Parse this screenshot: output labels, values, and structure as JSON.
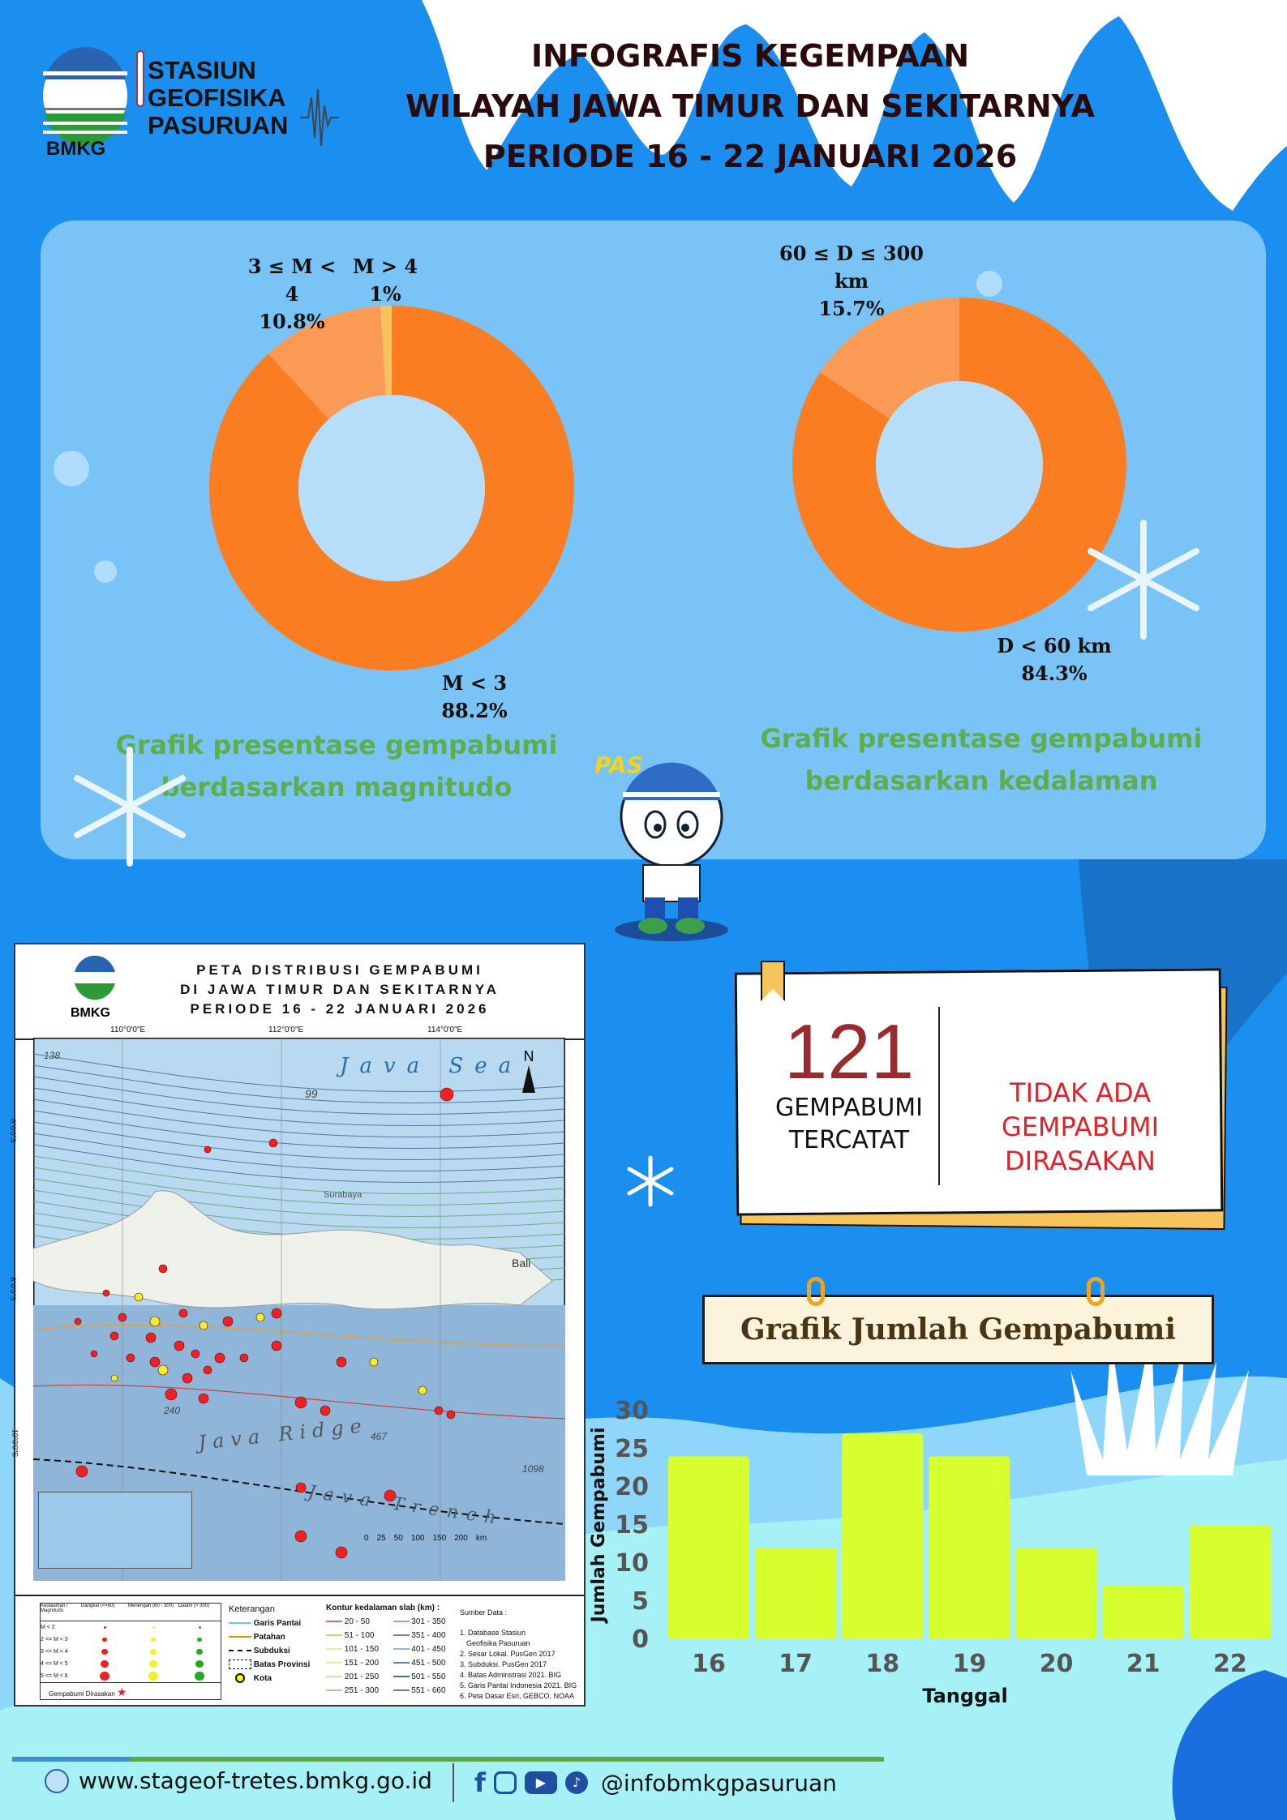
{
  "header": {
    "org_lines": [
      "STASIUN",
      "GEOFISIKA",
      "PASURUAN"
    ],
    "logo_text": "BMKG",
    "title_lines": [
      "INFOGRAFIS KEGEMPAAN",
      "WILAYAH JAWA TIMUR DAN SEKITARNYA",
      "PERIODE 16 - 22 JANUARI 2026"
    ]
  },
  "colors": {
    "background": "#1b8fef",
    "pie_main": "#fb7d22",
    "pie_secondary": "#fb9a55",
    "pie_minor": "#f9c25c",
    "bars": "#d7ff2e",
    "caption": "#5fae4e",
    "count": "#9b2a2e",
    "felt": "#e0232a"
  },
  "chart_data": [
    {
      "type": "pie",
      "title": "Grafik presentase gempabumi berdasarkan magnitudo",
      "slices": [
        {
          "label": "M < 3",
          "value": 88.2,
          "display": "88.2%"
        },
        {
          "label": "3 ≤ M < 4",
          "value": 10.8,
          "display": "10.8%"
        },
        {
          "label": "M > 4",
          "value": 1,
          "display": "1%"
        }
      ]
    },
    {
      "type": "pie",
      "title": "Grafik presentase gempabumi berdasarkan kedalaman",
      "slices": [
        {
          "label": "D < 60 km",
          "value": 84.3,
          "display": "84.3%"
        },
        {
          "label": "60 ≤ D ≤ 300 km",
          "value": 15.7,
          "display": "15.7%"
        }
      ]
    },
    {
      "type": "bar",
      "title": "Grafik Jumlah Gempabumi",
      "categories": [
        "16",
        "17",
        "18",
        "19",
        "20",
        "21",
        "22"
      ],
      "values": [
        24,
        12,
        27,
        24,
        12,
        7,
        15
      ],
      "xlabel": "Tanggal",
      "ylabel": "Jumlah Gempabumi",
      "ylim": [
        0,
        30
      ],
      "yticks": [
        "0",
        "5",
        "10",
        "15",
        "20",
        "25",
        "30"
      ],
      "grid": false
    }
  ],
  "captions": {
    "magnitude": [
      "Grafik presentase gempabumi",
      "berdasarkan magnitudo"
    ],
    "depth": [
      "Grafik presentase gempabumi",
      "berdasarkan kedalaman"
    ]
  },
  "mascot": {
    "name": "PAS"
  },
  "map": {
    "logo_text": "BMKG",
    "title_lines": [
      "PETA DISTRIBUSI GEMPABUMI",
      "DI JAWA TIMUR DAN SEKITARNYA",
      "PERIODE 16 - 22 JANUARI 2026"
    ],
    "lon_ticks": [
      "110°0'0\"E",
      "112°0'0\"E",
      "114°0'0\"E"
    ],
    "lat_ticks": [
      "6°0'0\"S",
      "8°0'0\"S",
      "10°0'0\"S"
    ],
    "labels": {
      "sea": "Java Sea",
      "ridge": "Java Ridge",
      "north": "N",
      "contour_99": "99",
      "contour_138": "138",
      "contour_240": "240",
      "contour_467": "467",
      "contour_1098": "1098",
      "city": "Surabaya",
      "bali": "Bali",
      "trench": "Java Trench"
    },
    "scale": [
      "0",
      "25",
      "50",
      "100",
      "150",
      "200",
      "km"
    ],
    "legend": {
      "table_header": [
        "Kedalaman / Magnitudo",
        "Dangkal (<=60)",
        "Menengah (60 - 300)",
        "Dalam (> 300)"
      ],
      "rows": [
        "M < 2",
        "2 <= M < 3",
        "3 <= M < 4",
        "4 <= M < 5",
        "5 <= M < 6"
      ],
      "felt": "Gempabumi Dirasakan",
      "keterangan_title": "Keterangan",
      "keterangan": [
        "Garis Pantai",
        "Patahan",
        "Subduksi",
        "Batas Provinsi",
        "Kota"
      ],
      "contour_title": "Kontur kedalaman slab (km) :",
      "contours": [
        "20 - 50",
        "51 - 100",
        "101 - 150",
        "151 - 200",
        "201 - 250",
        "251 - 300",
        "301 - 350",
        "351 - 400",
        "401 - 450",
        "451 - 500",
        "501 - 550",
        "551 - 660"
      ],
      "source_title": "Sumber Data :",
      "sources": [
        "1. Database Stasiun",
        "Geofisika Pasuruan",
        "2. Sesar Lokal. PusGen 2017",
        "3. Subduksi. PusGen 2017",
        "4. Batas Adminstrasi 2021. BIG",
        "5. Garis Pantai Indonesia 2021. BIG",
        "6. Peta Dasar Esri, GEBCO, NOAA"
      ]
    }
  },
  "summary": {
    "count": "121",
    "count_label": [
      "GEMPABUMI",
      "TERCATAT"
    ],
    "felt_label": [
      "TIDAK ADA",
      "GEMPABUMI",
      "DIRASAKAN"
    ]
  },
  "footer": {
    "website": "www.stageof-tretes.bmkg.go.id",
    "social_handle": "@infobmkgpasuruan",
    "social_icons": [
      "facebook-icon",
      "instagram-icon",
      "youtube-icon",
      "tiktok-icon"
    ]
  }
}
